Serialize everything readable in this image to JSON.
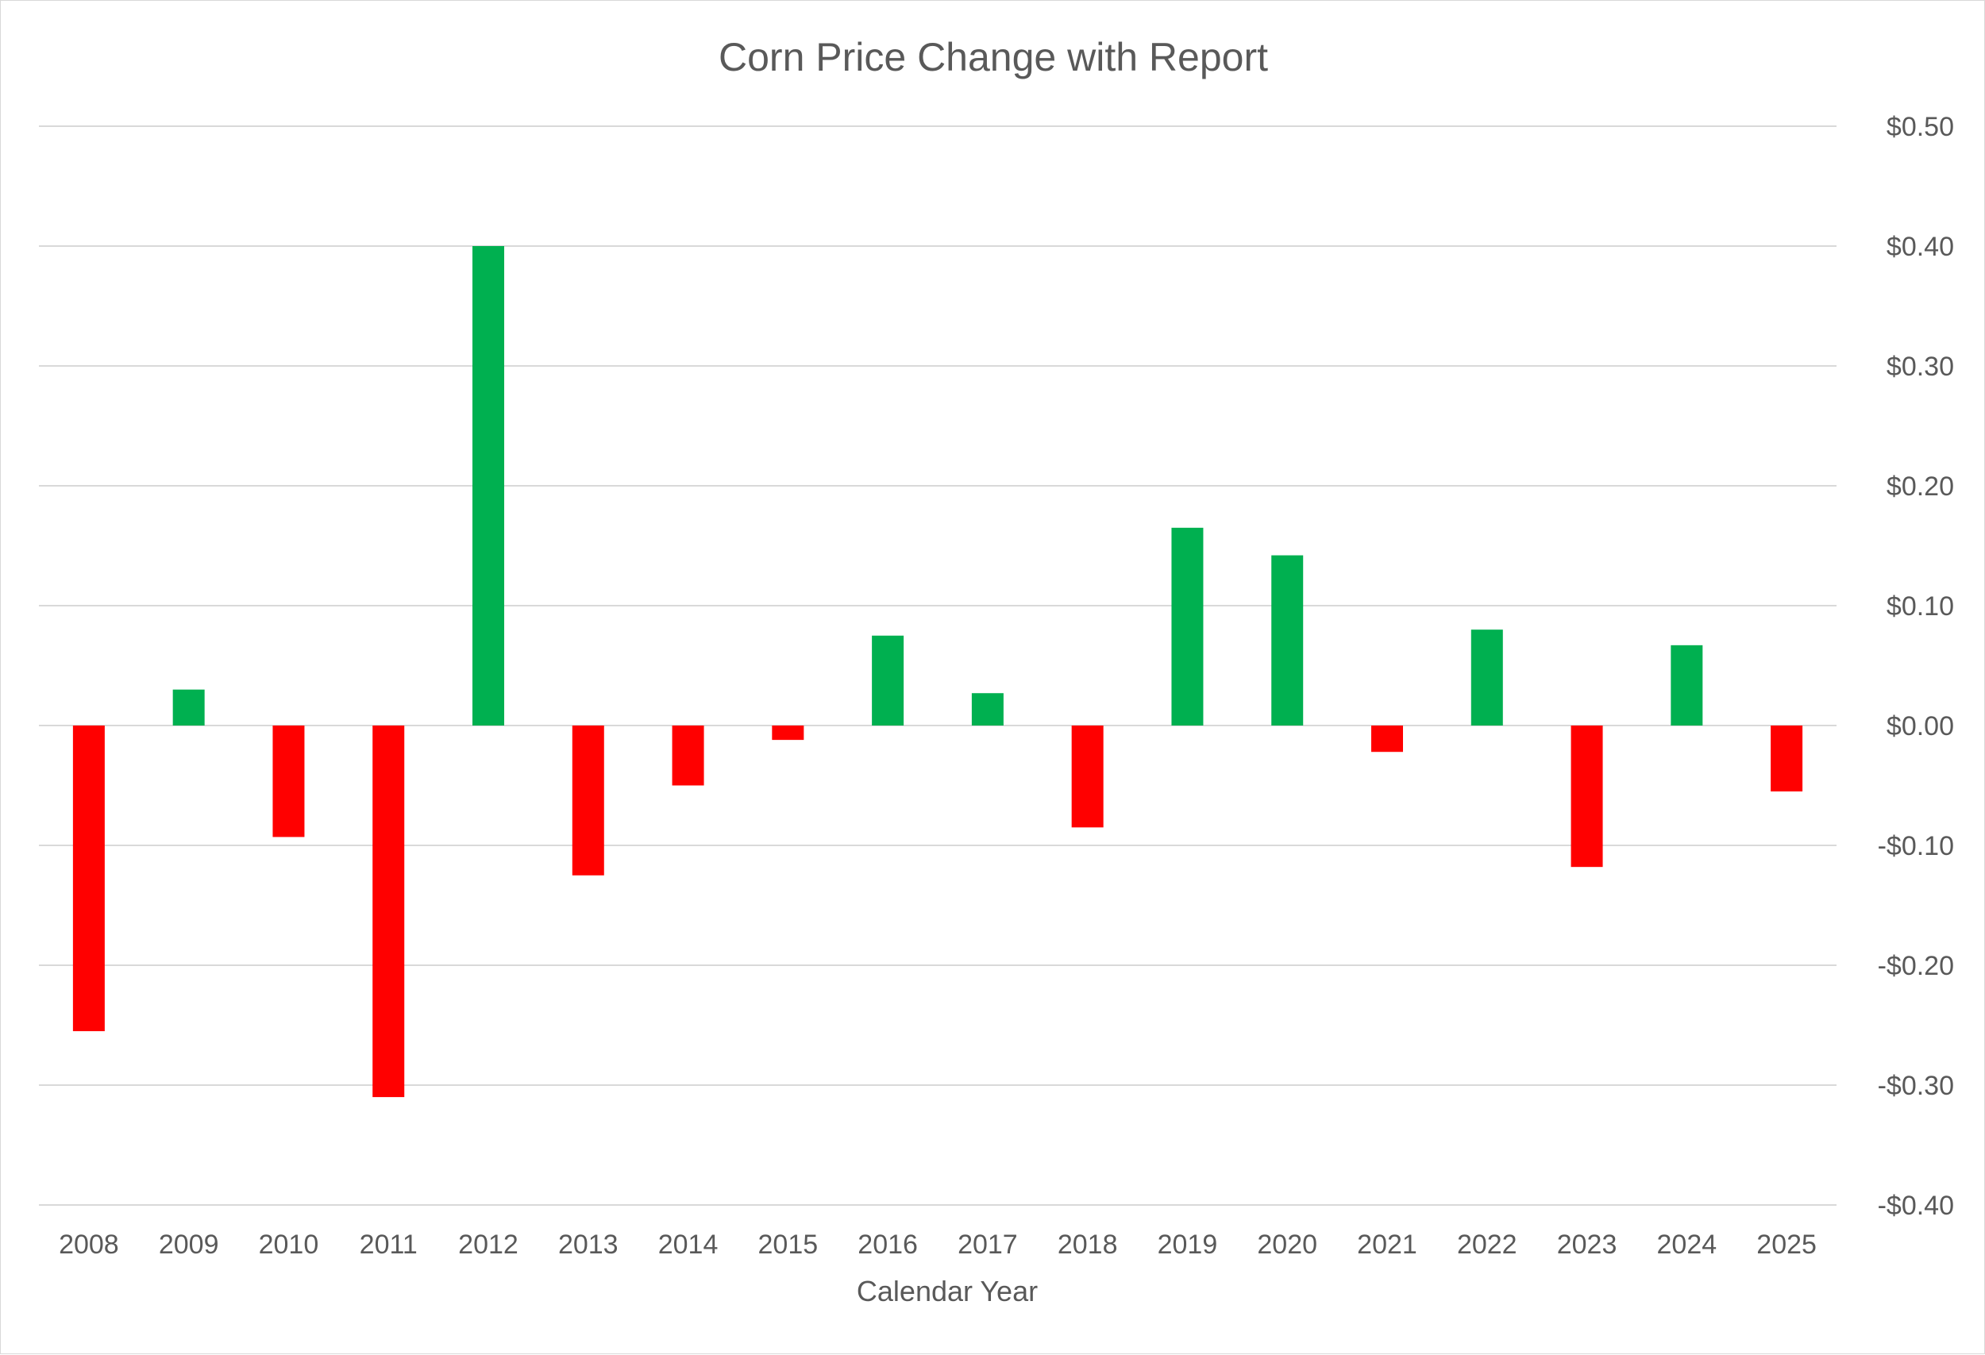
{
  "chart_data": {
    "type": "bar",
    "title": "Corn Price Change with Report",
    "xlabel": "Calendar Year",
    "ylabel": "",
    "ylim": [
      -0.4,
      0.5
    ],
    "y_ticks": [
      0.5,
      0.4,
      0.3,
      0.2,
      0.1,
      0.0,
      -0.1,
      -0.2,
      -0.3,
      -0.4
    ],
    "y_tick_labels": [
      "$0.50",
      "$0.40",
      "$0.30",
      "$0.20",
      "$0.10",
      "$0.00",
      "-$0.10",
      "-$0.20",
      "-$0.30",
      "-$0.40"
    ],
    "y_axis_position": "right",
    "grid": true,
    "legend": "none",
    "categories": [
      "2008",
      "2009",
      "2010",
      "2011",
      "2012",
      "2013",
      "2014",
      "2015",
      "2016",
      "2017",
      "2018",
      "2019",
      "2020",
      "2021",
      "2022",
      "2023",
      "2024",
      "2025"
    ],
    "values": [
      -0.255,
      0.03,
      -0.093,
      -0.31,
      0.4,
      -0.125,
      -0.05,
      -0.012,
      0.075,
      0.027,
      -0.085,
      0.165,
      0.142,
      -0.022,
      0.08,
      -0.118,
      0.067,
      -0.055
    ],
    "colors": {
      "positive": "#00b050",
      "negative": "#ff0000",
      "gridline": "#d9d9d9",
      "text": "#595959"
    }
  }
}
